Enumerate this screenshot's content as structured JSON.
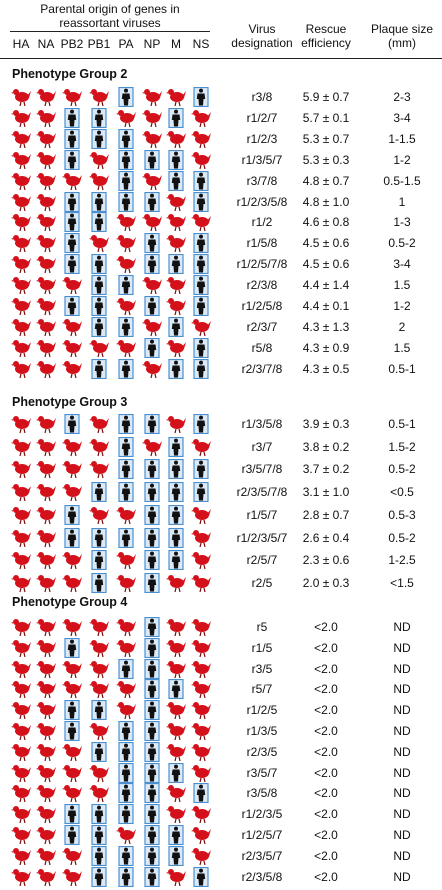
{
  "header": {
    "parental_origin": "Parental origin of genes in reassortant viruses",
    "genes": [
      "HA",
      "NA",
      "PB2",
      "PB1",
      "PA",
      "NP",
      "M",
      "NS"
    ],
    "designation": "Virus designation",
    "rescue": "Rescue efficiency",
    "plaque": "Plaque size (mm)"
  },
  "groups": [
    {
      "title": "Phenotype Group 2",
      "rows": [
        [
          "r3/8",
          "5.9 ± 0.7",
          "2-3"
        ],
        [
          "r1/2/7",
          "5.7 ± 0.1",
          "3-4"
        ],
        [
          "r1/2/3",
          "5.3 ± 0.7",
          "1-1.5"
        ],
        [
          "r1/3/5/7",
          "5.3 ± 0.3",
          "1-2"
        ],
        [
          "r3/7/8",
          "4.8 ± 0.7",
          "0.5-1.5"
        ],
        [
          "r1/2/3/5/8",
          "4.8 ± 1.0",
          "1"
        ],
        [
          "r1/2",
          "4.6 ± 0.8",
          "1-3"
        ],
        [
          "r1/5/8",
          "4.5 ± 0.6",
          "0.5-2"
        ],
        [
          "r1/2/5/7/8",
          "4.5 ± 0.6",
          "3-4"
        ],
        [
          "r2/3/8",
          "4.4 ± 1.4",
          "1.5"
        ],
        [
          "r1/2/5/8",
          "4.4 ± 0.1",
          "1-2"
        ],
        [
          "r2/3/7",
          "4.3 ± 1.3",
          "2"
        ],
        [
          "r5/8",
          "4.3 ± 0.9",
          "1.5"
        ],
        [
          "r2/3/7/8",
          "4.3 ± 0.5",
          "0.5-1"
        ]
      ]
    },
    {
      "title": "Phenotype Group 3",
      "rows": [
        [
          "r1/3/5/8",
          "3.9 ± 0.3",
          "0.5-1"
        ],
        [
          "r3/7",
          "3.8 ± 0.2",
          "1.5-2"
        ],
        [
          "r3/5/7/8",
          "3.7 ± 0.2",
          "0.5-2"
        ],
        [
          "r2/3/5/7/8",
          "3.1 ± 1.0",
          "<0.5"
        ],
        [
          "r1/5/7",
          "2.8 ± 0.7",
          "0.5-3"
        ],
        [
          "r1/2/3/5/7",
          "2.6 ± 0.4",
          "0.5-2"
        ],
        [
          "r2/5/7",
          "2.3 ± 0.6",
          "1-2.5"
        ],
        [
          "r2/5",
          "2.0 ± 0.3",
          "<1.5"
        ]
      ]
    },
    {
      "title": "Phenotype Group 4",
      "rows": [
        [
          "r5",
          "<2.0",
          "ND"
        ],
        [
          "r1/5",
          "<2.0",
          "ND"
        ],
        [
          "r3/5",
          "<2.0",
          "ND"
        ],
        [
          "r5/7",
          "<2.0",
          "ND"
        ],
        [
          "r1/2/5",
          "<2.0",
          "ND"
        ],
        [
          "r1/3/5",
          "<2.0",
          "ND"
        ],
        [
          "r2/3/5",
          "<2.0",
          "ND"
        ],
        [
          "r3/5/7",
          "<2.0",
          "ND"
        ],
        [
          "r3/5/8",
          "<2.0",
          "ND"
        ],
        [
          "r1/2/3/5",
          "<2.0",
          "ND"
        ],
        [
          "r1/2/5/7",
          "<2.0",
          "ND"
        ],
        [
          "r2/3/5/7",
          "<2.0",
          "ND"
        ],
        [
          "r2/3/5/8",
          "<2.0",
          "ND"
        ]
      ]
    }
  ]
}
